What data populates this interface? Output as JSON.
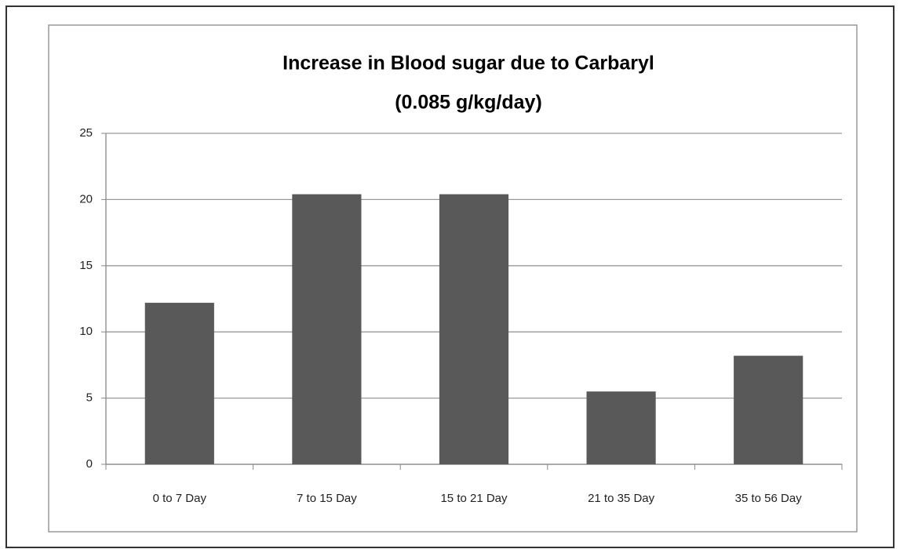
{
  "chart_data": {
    "type": "bar",
    "title": "Increase in Blood sugar due to Carbaryl",
    "subtitle": "(0.085 g/kg/day)",
    "categories": [
      "0 to 7 Day",
      "7 to 15 Day",
      "15 to 21 Day",
      "21 to 35 Day",
      "35 to 56 Day"
    ],
    "values": [
      12.2,
      20.4,
      20.4,
      5.5,
      8.2
    ],
    "color": "#595959",
    "ylim": [
      0,
      25
    ],
    "yticks": [
      0,
      5,
      10,
      15,
      20,
      25
    ],
    "grid": true
  }
}
